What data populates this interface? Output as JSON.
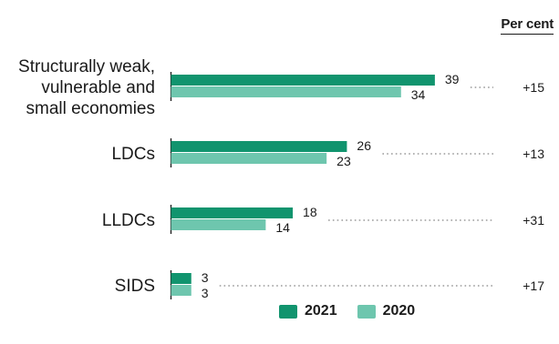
{
  "unit_label": "Per cent",
  "colors": {
    "s2021": "#11946e",
    "s2020": "#6ec6ae",
    "axis": "#1a1a1a",
    "dots": "#9a9a9a"
  },
  "chart_data": {
    "type": "bar",
    "orientation": "horizontal",
    "categories": [
      [
        "Structurally weak,",
        "vulnerable and",
        "small economies"
      ],
      [
        "LDCs"
      ],
      [
        "LLDCs"
      ],
      [
        "SIDS"
      ]
    ],
    "series": [
      {
        "name": "2021",
        "values": [
          39,
          26,
          18,
          3
        ]
      },
      {
        "name": "2020",
        "values": [
          34,
          23,
          14,
          3
        ]
      }
    ],
    "changes": [
      "+15",
      "+13",
      "+31",
      "+17"
    ],
    "grid": false,
    "legend": "bottom"
  }
}
